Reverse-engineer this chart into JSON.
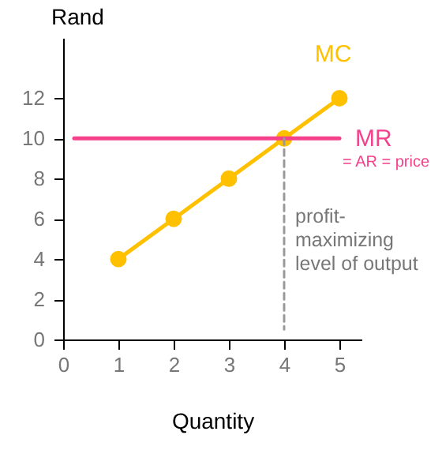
{
  "chart_data": {
    "type": "line",
    "xlabel": "Quantity",
    "ylabel": "Rand",
    "xlim": [
      0,
      5.4
    ],
    "ylim": [
      0,
      15
    ],
    "xticks": [
      0,
      1,
      2,
      3,
      4,
      5
    ],
    "yticks": [
      0,
      2,
      4,
      6,
      8,
      10,
      12
    ],
    "grid": false,
    "series": [
      {
        "name": "MC",
        "color": "#ffc000",
        "x": [
          1,
          2,
          3,
          4,
          5
        ],
        "values": [
          4,
          6,
          8,
          10,
          12
        ],
        "marker": "circle"
      },
      {
        "name": "MR",
        "color": "#f5408c",
        "x": [
          0.2,
          5
        ],
        "values": [
          10,
          10
        ],
        "marker": "none"
      },
      {
        "color": "#999999",
        "x": [
          4,
          4
        ],
        "values": [
          10,
          0.5
        ],
        "marker": "none",
        "line_style": "dashed"
      }
    ],
    "annotations": [
      {
        "text": "= AR = price",
        "x": 5,
        "y": 10
      },
      "profit-maximizing level of output"
    ]
  }
}
